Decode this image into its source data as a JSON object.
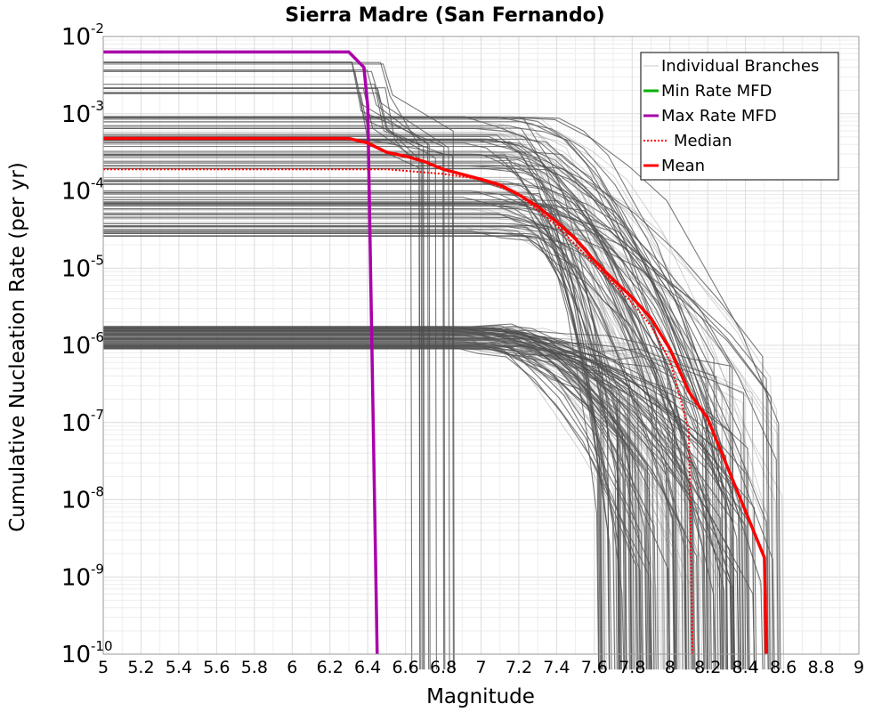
{
  "chart_data": {
    "type": "line",
    "title": "Sierra Madre (San Fernando)",
    "xlabel": "Magnitude",
    "ylabel": "Cumulative Nucleation Rate (per yr)",
    "xlim": [
      5,
      9
    ],
    "ylim_log10": [
      -10,
      -2
    ],
    "yscale": "log",
    "grid": true,
    "legend_position": "top-right",
    "x_ticks": [
      "5",
      "5.2",
      "5.4",
      "5.6",
      "5.8",
      "6",
      "6.2",
      "6.4",
      "6.6",
      "6.8",
      "7",
      "7.2",
      "7.4",
      "7.6",
      "7.8",
      "8",
      "8.2",
      "8.4",
      "8.6",
      "8.8",
      "9"
    ],
    "y_ticks": [
      {
        "base": "10",
        "exp": "-2"
      },
      {
        "base": "10",
        "exp": "-3"
      },
      {
        "base": "10",
        "exp": "-4"
      },
      {
        "base": "10",
        "exp": "-5"
      },
      {
        "base": "10",
        "exp": "-6"
      },
      {
        "base": "10",
        "exp": "-7"
      },
      {
        "base": "10",
        "exp": "-8"
      },
      {
        "base": "10",
        "exp": "-9"
      },
      {
        "base": "10",
        "exp": "-10"
      }
    ],
    "legend": [
      {
        "label": "Individual Branches",
        "color": "#c8c8c8",
        "style": "solid"
      },
      {
        "label": "Min Rate MFD",
        "color": "#00b000",
        "style": "solid"
      },
      {
        "label": "Max Rate MFD",
        "color": "#aa00aa",
        "style": "solid"
      },
      {
        "label": "Median",
        "color": "#ff0000",
        "style": "dotted"
      },
      {
        "label": "Mean",
        "color": "#ff0000",
        "style": "solid"
      }
    ],
    "series": [
      {
        "name": "Max Rate MFD",
        "color": "#aa00aa",
        "x": [
          5.0,
          6.3,
          6.38,
          6.4,
          6.45
        ],
        "log10_y": [
          -2.2,
          -2.2,
          -2.4,
          -2.9,
          -10.0
        ]
      },
      {
        "name": "Mean",
        "color": "#ff0000",
        "x": [
          5.0,
          6.3,
          6.4,
          6.5,
          6.6,
          6.7,
          6.8,
          7.0,
          7.1,
          7.2,
          7.3,
          7.4,
          7.5,
          7.6,
          7.7,
          7.8,
          7.9,
          8.0,
          8.1,
          8.2,
          8.3,
          8.4,
          8.5,
          8.51
        ],
        "log10_y": [
          -3.32,
          -3.32,
          -3.38,
          -3.5,
          -3.55,
          -3.62,
          -3.72,
          -3.85,
          -3.92,
          -4.05,
          -4.2,
          -4.4,
          -4.62,
          -4.9,
          -5.15,
          -5.38,
          -5.65,
          -6.05,
          -6.6,
          -6.95,
          -7.55,
          -8.15,
          -8.75,
          -10.0
        ]
      },
      {
        "name": "Median",
        "color": "#ff0000",
        "x": [
          5.0,
          6.5,
          6.8,
          7.0,
          7.2,
          7.4,
          7.6,
          7.8,
          7.9,
          8.0,
          8.1,
          8.12
        ],
        "log10_y": [
          -3.72,
          -3.72,
          -3.78,
          -3.85,
          -4.05,
          -4.45,
          -4.95,
          -5.45,
          -5.75,
          -6.2,
          -7.1,
          -10.0
        ]
      }
    ],
    "branch_bands": [
      {
        "name": "upper band",
        "n": 120,
        "x_flat_end_range": [
          6.9,
          7.3
        ],
        "log10_flat_range": [
          -4.65,
          -3.0
        ],
        "x_drop_range": [
          7.6,
          8.6
        ]
      },
      {
        "name": "lower band",
        "n": 100,
        "x_flat_end_range": [
          6.8,
          7.1
        ],
        "log10_flat_range": [
          -6.05,
          -5.75
        ],
        "x_drop_range": [
          7.7,
          8.45
        ]
      },
      {
        "name": "high-rate step branches",
        "n": 14,
        "x_flat_end_range": [
          6.3,
          6.5
        ],
        "log10_flat_range": [
          -2.75,
          -2.3
        ],
        "x_drop_range": [
          6.6,
          6.86
        ]
      }
    ]
  }
}
